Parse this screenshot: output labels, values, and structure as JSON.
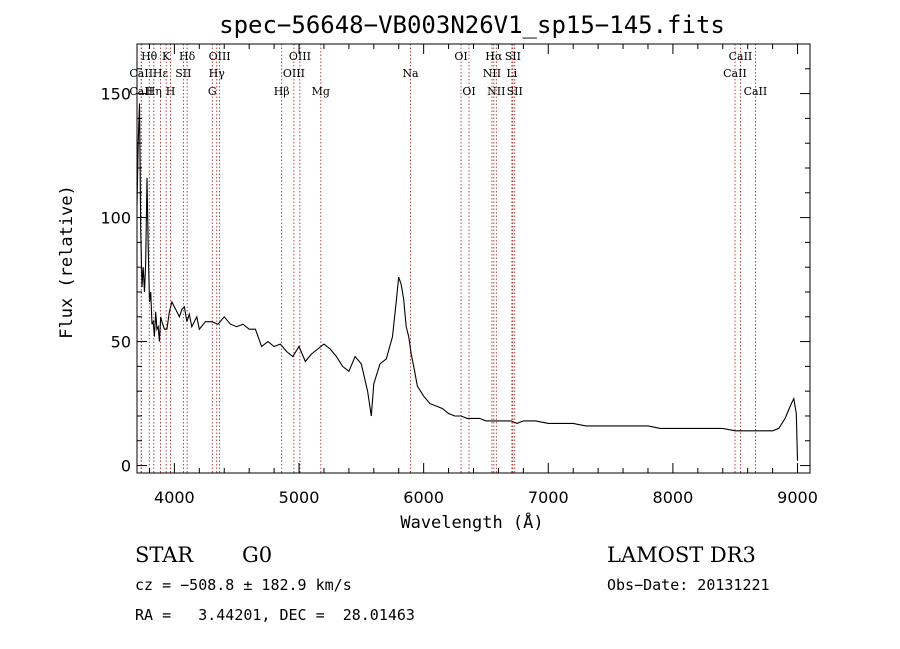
{
  "chart_data": {
    "type": "line",
    "title": "spec−56648−VB003N26V1_sp15−145.fits",
    "xlabel": "Wavelength (Å)",
    "ylabel": "Flux (relative)",
    "xlim": [
      3700,
      9100
    ],
    "ylim": [
      -3,
      170
    ],
    "xticks": [
      4000,
      5000,
      6000,
      7000,
      8000,
      9000
    ],
    "xtick_labels": [
      "4000",
      "5000",
      "6000",
      "7000",
      "8000",
      "9000"
    ],
    "yticks": [
      0,
      50,
      100,
      150
    ],
    "ytick_labels": [
      "0",
      "50",
      "100",
      "150"
    ],
    "grid": false,
    "series": [
      {
        "name": "flux",
        "x": [
          3700,
          3710,
          3720,
          3730,
          3740,
          3750,
          3760,
          3770,
          3780,
          3790,
          3800,
          3810,
          3820,
          3830,
          3840,
          3850,
          3860,
          3870,
          3880,
          3890,
          3900,
          3920,
          3940,
          3960,
          3980,
          4000,
          4020,
          4040,
          4060,
          4080,
          4100,
          4120,
          4140,
          4160,
          4180,
          4200,
          4250,
          4300,
          4350,
          4400,
          4450,
          4500,
          4550,
          4600,
          4650,
          4700,
          4750,
          4800,
          4850,
          4900,
          4950,
          5000,
          5050,
          5100,
          5150,
          5200,
          5250,
          5300,
          5350,
          5400,
          5450,
          5500,
          5550,
          5580,
          5600,
          5650,
          5700,
          5750,
          5780,
          5800,
          5820,
          5840,
          5860,
          5880,
          5900,
          5920,
          5950,
          6000,
          6050,
          6100,
          6150,
          6200,
          6250,
          6300,
          6350,
          6400,
          6450,
          6500,
          6550,
          6600,
          6650,
          6700,
          6750,
          6800,
          6900,
          7000,
          7100,
          7200,
          7300,
          7400,
          7500,
          7600,
          7700,
          7800,
          7900,
          8000,
          8100,
          8200,
          8300,
          8400,
          8500,
          8600,
          8700,
          8800,
          8850,
          8900,
          8950,
          8970,
          8990,
          9000
        ],
        "values": [
          105,
          130,
          146,
          95,
          72,
          80,
          70,
          82,
          116,
          88,
          66,
          70,
          57,
          58,
          52,
          62,
          55,
          56,
          50,
          60,
          58,
          55,
          55,
          62,
          66,
          64,
          62,
          60,
          63,
          64,
          58,
          61,
          56,
          58,
          60,
          55,
          58,
          58,
          57,
          60,
          57,
          56,
          57,
          55,
          55,
          48,
          50,
          48,
          49,
          46,
          44,
          48,
          42,
          45,
          47,
          49,
          47,
          44,
          40,
          38,
          44,
          41,
          30,
          20,
          33,
          41,
          43,
          52,
          66,
          76,
          73,
          67,
          56,
          52,
          45,
          40,
          32,
          28,
          25,
          24,
          23,
          21,
          20,
          20,
          19,
          19,
          19,
          18,
          18,
          18,
          18,
          18,
          17,
          18,
          18,
          17,
          17,
          17,
          16,
          16,
          16,
          16,
          16,
          16,
          15,
          15,
          15,
          15,
          15,
          15,
          14,
          14,
          14,
          14,
          15,
          19,
          25,
          27,
          21,
          2
        ]
      }
    ],
    "line_markers": [
      {
        "label": "Hθ",
        "wavelength": 3798,
        "row": 0
      },
      {
        "label": "CaII",
        "wavelength": 3734,
        "row": 1
      },
      {
        "label": "CaII",
        "wavelength": 3734,
        "row": 2
      },
      {
        "label": "Hε",
        "wavelength": 3889,
        "row": 1
      },
      {
        "label": "Hη",
        "wavelength": 3835,
        "row": 2
      },
      {
        "label": "K",
        "wavelength": 3934,
        "row": 0
      },
      {
        "label": "SII",
        "wavelength": 4072,
        "row": 1
      },
      {
        "label": "H",
        "wavelength": 3969,
        "row": 2
      },
      {
        "label": "Hδ",
        "wavelength": 4102,
        "row": 0
      },
      {
        "label": "OIII",
        "wavelength": 4363,
        "row": 0
      },
      {
        "label": "Hγ",
        "wavelength": 4340,
        "row": 1
      },
      {
        "label": "G",
        "wavelength": 4304,
        "row": 2
      },
      {
        "label": "Hβ",
        "wavelength": 4861,
        "row": 2
      },
      {
        "label": "OIII",
        "wavelength": 5007,
        "row": 0
      },
      {
        "label": "OIII",
        "wavelength": 4959,
        "row": 1
      },
      {
        "label": "Mg",
        "wavelength": 5175,
        "row": 2
      },
      {
        "label": "Na",
        "wavelength": 5894,
        "row": 1
      },
      {
        "label": "OI",
        "wavelength": 6300,
        "row": 0
      },
      {
        "label": "OI",
        "wavelength": 6364,
        "row": 2
      },
      {
        "label": "Hα",
        "wavelength": 6563,
        "row": 0
      },
      {
        "label": "NII",
        "wavelength": 6548,
        "row": 1
      },
      {
        "label": "NII",
        "wavelength": 6583,
        "row": 2
      },
      {
        "label": "SII",
        "wavelength": 6716,
        "row": 0
      },
      {
        "label": "Li",
        "wavelength": 6708,
        "row": 1
      },
      {
        "label": "SII",
        "wavelength": 6731,
        "row": 2
      },
      {
        "label": "CaII",
        "wavelength": 8542,
        "row": 0
      },
      {
        "label": "CaII",
        "wavelength": 8498,
        "row": 1
      },
      {
        "label": "CaII",
        "wavelength": 8662,
        "row": 2
      }
    ]
  },
  "info": {
    "class": "STAR",
    "subclass": "G0",
    "survey": "LAMOST DR3",
    "redshift": "cz = −508.8 ± 182.9 km/s",
    "obs_date": "Obs−Date: 20131221",
    "coords": "RA =   3.44201, DEC =  28.01463"
  },
  "colors": {
    "spectrum": "#000000",
    "marker": "#a01818",
    "axis": "#000000"
  }
}
